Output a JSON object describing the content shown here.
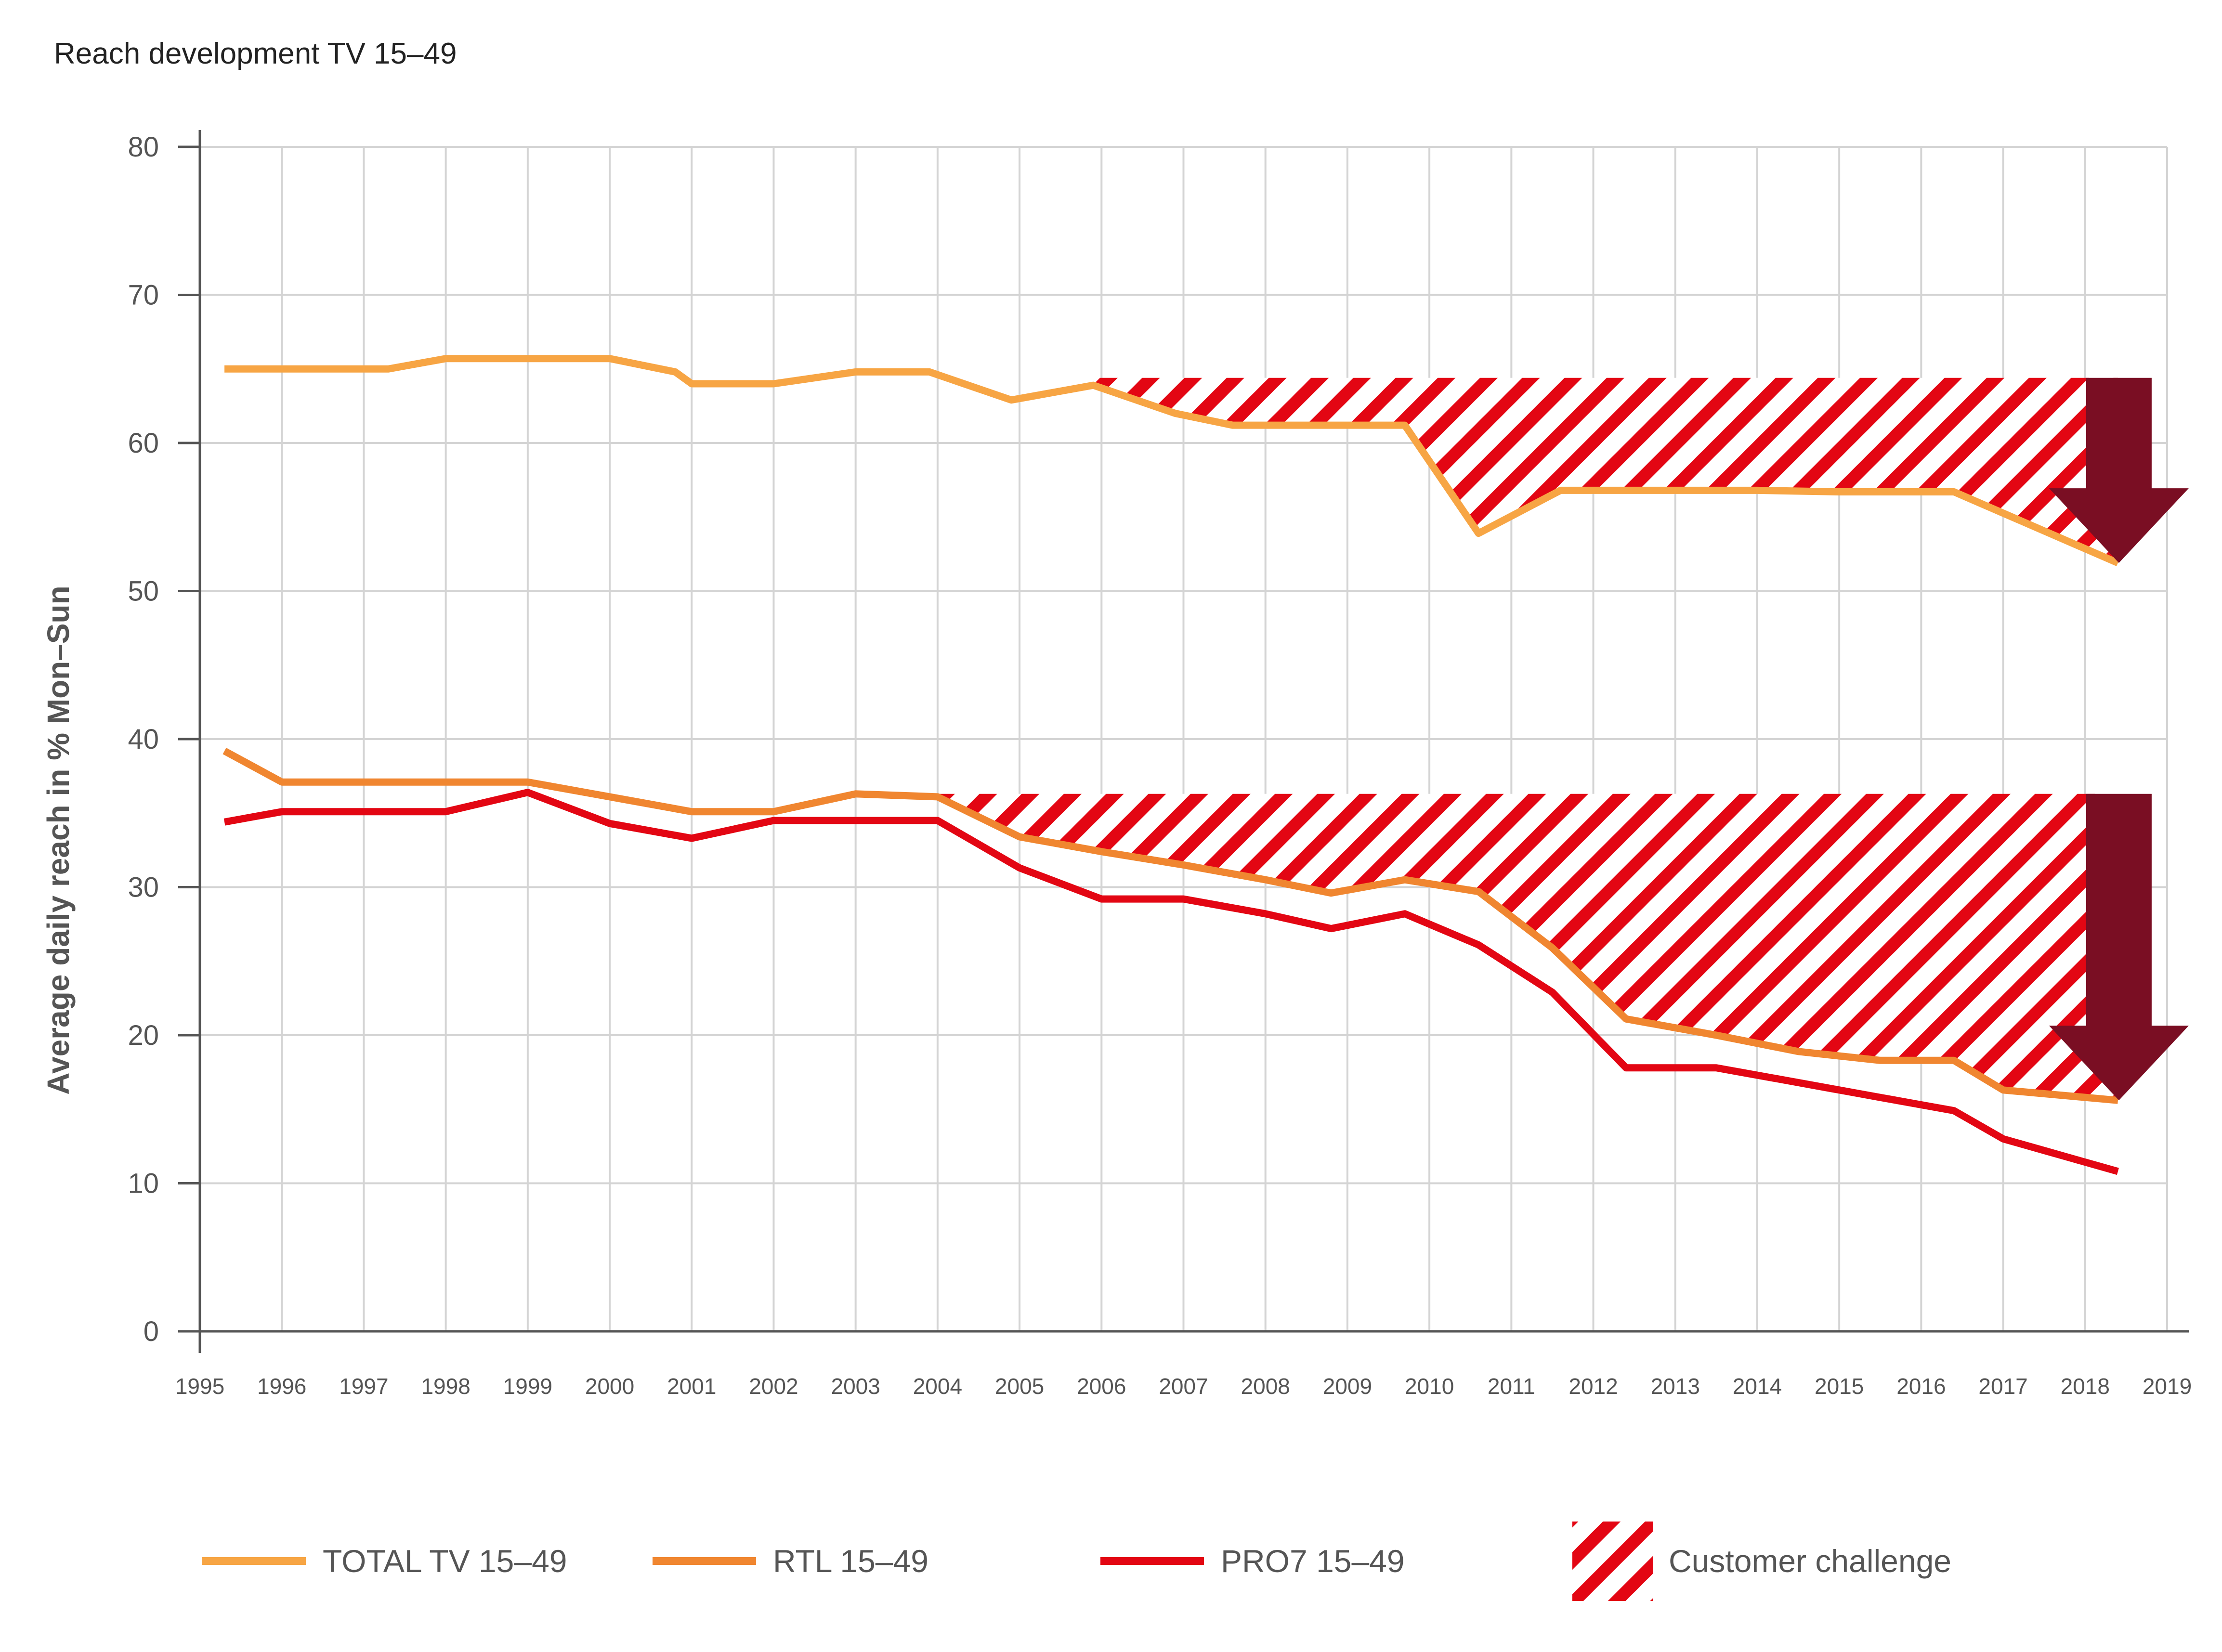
{
  "chart_data": {
    "type": "line",
    "title": "Reach development TV 15–49",
    "xlabel": "",
    "ylabel": "Average daily reach in % Mon–Sun",
    "ylim": [
      0,
      80
    ],
    "yticks": [
      0,
      10,
      20,
      30,
      40,
      50,
      60,
      70,
      80
    ],
    "xlim": [
      1995,
      2019
    ],
    "xticks": [
      "1995",
      "1996",
      "1997",
      "1998",
      "1999",
      "2000",
      "2001",
      "2002",
      "2003",
      "2004",
      "2005",
      "2006",
      "2007",
      "2008",
      "2009",
      "2010",
      "2011",
      "2012",
      "2013",
      "2014",
      "2015",
      "2016",
      "2017",
      "2018",
      "2019"
    ],
    "grid": true,
    "legend_position": "bottom",
    "series": [
      {
        "name": "TOTAL TV 15–49",
        "color": "#F7A544",
        "x": [
          1995.3,
          1996,
          1997,
          1997.3,
          1998,
          1999,
          2000,
          2000.8,
          2001,
          2002,
          2003,
          2003.9,
          2004.9,
          2005.9,
          2006.9,
          2007.6,
          2008,
          2009,
          2009.7,
          2010.6,
          2011.6,
          2012.6,
          2013.2,
          2014,
          2015,
          2016,
          2016.4,
          2018.4
        ],
        "y": [
          65,
          65,
          65,
          65,
          65.7,
          65.7,
          65.7,
          64.8,
          64,
          64,
          64.8,
          64.8,
          62.9,
          63.9,
          62,
          61.2,
          61.2,
          61.2,
          61.2,
          53.9,
          56.8,
          56.8,
          56.8,
          56.8,
          56.7,
          56.7,
          56.7,
          51.9
        ]
      },
      {
        "name": "RTL 15–49",
        "color": "#F08630",
        "x": [
          1995.3,
          1996,
          1997,
          1998,
          1999,
          2000,
          2001,
          2002,
          2003,
          2004,
          2005,
          2006,
          2007,
          2008,
          2008.8,
          2009.7,
          2010.6,
          2011.5,
          2012.4,
          2013.5,
          2014.5,
          2015.5,
          2016.4,
          2017,
          2018.4
        ],
        "y": [
          39.2,
          37.1,
          37.1,
          37.1,
          37.1,
          36.1,
          35.1,
          35.1,
          36.3,
          36.1,
          33.4,
          32.4,
          31.5,
          30.5,
          29.6,
          30.5,
          29.7,
          25.9,
          21.1,
          20,
          18.9,
          18.3,
          18.3,
          16.3,
          15.6
        ]
      },
      {
        "name": "PRO7 15–49",
        "color": "#E30613",
        "x": [
          1995.3,
          1996,
          1997,
          1998,
          1999,
          2000,
          2001,
          2002,
          2003,
          2004,
          2005,
          2006,
          2007,
          2008,
          2008.8,
          2009.7,
          2010.6,
          2011.5,
          2012.4,
          2013.5,
          2014.5,
          2015.5,
          2016.4,
          2017,
          2018.4
        ],
        "y": [
          34.4,
          35.1,
          35.1,
          35.1,
          36.4,
          34.3,
          33.3,
          34.5,
          34.5,
          34.5,
          31.3,
          29.2,
          29.2,
          28.2,
          27.2,
          28.2,
          26.1,
          22.9,
          17.8,
          17.8,
          16.8,
          15.8,
          14.9,
          13,
          10.8
        ]
      }
    ],
    "annotations": [
      {
        "name": "Customer challenge",
        "type": "hatched-area",
        "color": "#E30613",
        "reference_series": "TOTAL TV 15–49",
        "upper_value": 64.4,
        "x_range": [
          2005.9,
          2018.4
        ]
      },
      {
        "name": "Customer challenge",
        "type": "hatched-area",
        "color": "#E30613",
        "reference_series": "RTL 15–49",
        "upper_value": 36.3,
        "x_range": [
          2004,
          2018.4
        ]
      }
    ],
    "arrows": [
      {
        "name": "downward-arrow-total-tv",
        "color": "#7A0E23",
        "from_value": 64.4,
        "to_value": 51.9,
        "x": 2018.4
      },
      {
        "name": "downward-arrow-rtl",
        "color": "#7A0E23",
        "from_value": 36.3,
        "to_value": 15.6,
        "x": 2018.4
      }
    ],
    "legend": [
      {
        "label": "TOTAL TV 15–49",
        "kind": "line",
        "color": "#F7A544"
      },
      {
        "label": "RTL 15–49",
        "kind": "line",
        "color": "#F08630"
      },
      {
        "label": "PRO7 15–49",
        "kind": "line",
        "color": "#E30613"
      },
      {
        "label": "Customer challenge",
        "kind": "hatch",
        "color": "#E30613"
      }
    ]
  }
}
